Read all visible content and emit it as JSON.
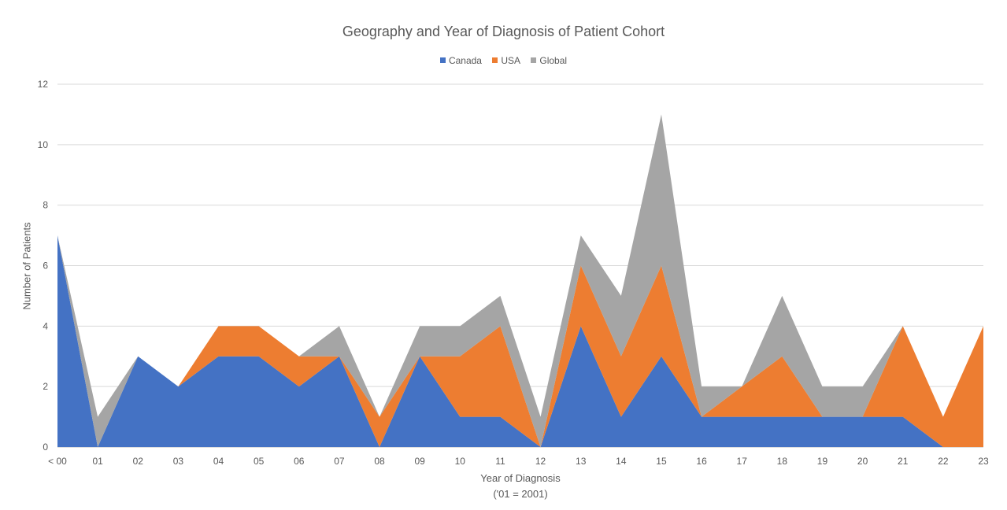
{
  "chart_data": {
    "type": "area",
    "stacked": true,
    "title": "Geography and Year of Diagnosis of Patient Cohort",
    "xlabel": "Year of Diagnosis",
    "xlabel_note": "('01 = 2001)",
    "ylabel": "Number of Patients",
    "ylim": [
      0,
      12
    ],
    "yticks": [
      "0",
      "2",
      "4",
      "6",
      "8",
      "10",
      "12"
    ],
    "grid": true,
    "legend_position": "top",
    "categories": [
      "< 00",
      "01",
      "02",
      "03",
      "04",
      "05",
      "06",
      "07",
      "08",
      "09",
      "10",
      "11",
      "12",
      "13",
      "14",
      "15",
      "16",
      "17",
      "18",
      "19",
      "20",
      "21",
      "22",
      "23"
    ],
    "series": [
      {
        "name": "Canada",
        "color": "#4472C4",
        "values": [
          7,
          0,
          3,
          2,
          3,
          3,
          2,
          3,
          0,
          3,
          1,
          1,
          0,
          4,
          1,
          3,
          1,
          1,
          1,
          1,
          1,
          1,
          0,
          0
        ]
      },
      {
        "name": "USA",
        "color": "#ED7D31",
        "values": [
          0,
          0,
          0,
          0,
          1,
          1,
          1,
          0,
          1,
          0,
          2,
          3,
          0,
          2,
          2,
          3,
          0,
          1,
          2,
          0,
          0,
          3,
          1,
          4
        ]
      },
      {
        "name": "Global",
        "color": "#A5A5A5",
        "values": [
          0,
          1,
          0,
          0,
          0,
          0,
          0,
          1,
          0,
          1,
          1,
          1,
          1,
          1,
          2,
          5,
          1,
          0,
          2,
          1,
          1,
          0,
          0,
          0
        ]
      }
    ]
  }
}
